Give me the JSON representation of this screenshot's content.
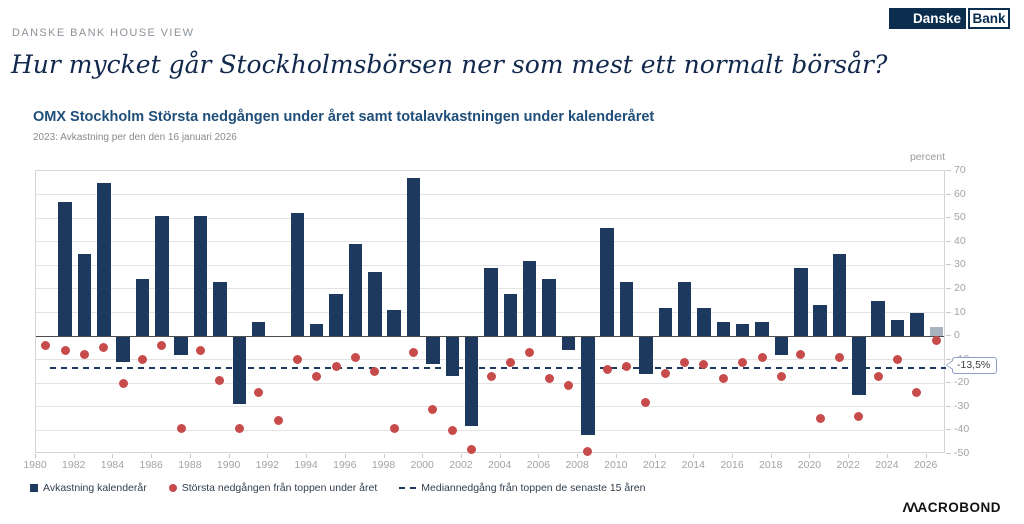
{
  "header": {
    "eyebrow": "DANSKE BANK HOUSE VIEW",
    "title": "Hur mycket går Stockholmsbörsen ner som mest ett normalt börsår?",
    "logo": {
      "part1": "Danske",
      "part2": "Bank"
    }
  },
  "chart": {
    "title": "OMX Stockholm Största nedgången under året samt totalavkastningen under kalenderåret",
    "subtitle": "2023: Avkastning per den den 16 januari 2026",
    "unit_label": "percent",
    "median_callout": "-13,5%"
  },
  "legend": {
    "items": [
      {
        "swatch": "bar-swatch",
        "label": "Avkastning kalenderår"
      },
      {
        "swatch": "dot-swatch",
        "label": "Största nedgången från toppen under året"
      },
      {
        "swatch": "dash-swatch",
        "label": "Mediannedgång från toppen de senaste 15 åren"
      }
    ]
  },
  "footer": {
    "brand": "MACROBOND",
    "brand_m": "ΛΛ",
    "brand_rest": "ACROBOND"
  },
  "colors": {
    "bar": "#1d3a5e",
    "bar_partial_year": "#a9b3c0",
    "dot": "#c84b4b",
    "median_line": "#1d3a5e",
    "accent_navy": "#0b2e4e",
    "title_blue": "#1f4e79"
  },
  "chart_data": {
    "type": "bar",
    "title": "OMX Stockholm Största nedgången under året samt totalavkastningen under kalenderåret",
    "subtitle": "2023: Avkastning per den den 16 januari 2026",
    "ylabel": "percent",
    "ylim": [
      -50,
      70
    ],
    "ytick_step": 10,
    "grid": true,
    "legend_position": "bottom",
    "median_drawdown_last15y": -13.5,
    "partial_year": 2026,
    "xtick_labels": [
      1980,
      1982,
      1984,
      1986,
      1988,
      1990,
      1992,
      1994,
      1996,
      1998,
      2000,
      2002,
      2004,
      2006,
      2008,
      2010,
      2012,
      2014,
      2016,
      2018,
      2020,
      2022,
      2024,
      2026
    ],
    "series": [
      {
        "name": "Avkastning kalenderår",
        "type": "bar"
      },
      {
        "name": "Största nedgången från toppen under året",
        "type": "scatter"
      },
      {
        "name": "Mediannedgång från toppen de senaste 15 åren",
        "type": "line",
        "value": -13.5
      }
    ],
    "years": [
      {
        "year": 1980,
        "return": 0,
        "drawdown": -4
      },
      {
        "year": 1981,
        "return": 57,
        "drawdown": -6
      },
      {
        "year": 1982,
        "return": 35,
        "drawdown": -8
      },
      {
        "year": 1983,
        "return": 65,
        "drawdown": -5
      },
      {
        "year": 1984,
        "return": -11,
        "drawdown": -20
      },
      {
        "year": 1985,
        "return": 24,
        "drawdown": -10
      },
      {
        "year": 1986,
        "return": 51,
        "drawdown": -4
      },
      {
        "year": 1987,
        "return": -8,
        "drawdown": -39
      },
      {
        "year": 1988,
        "return": 51,
        "drawdown": -6
      },
      {
        "year": 1989,
        "return": 23,
        "drawdown": -19
      },
      {
        "year": 1990,
        "return": -29,
        "drawdown": -39
      },
      {
        "year": 1991,
        "return": 6,
        "drawdown": -24
      },
      {
        "year": 1992,
        "return": 0,
        "drawdown": -36
      },
      {
        "year": 1993,
        "return": 52,
        "drawdown": -10
      },
      {
        "year": 1994,
        "return": 5,
        "drawdown": -17
      },
      {
        "year": 1995,
        "return": 18,
        "drawdown": -13
      },
      {
        "year": 1996,
        "return": 39,
        "drawdown": -9
      },
      {
        "year": 1997,
        "return": 27,
        "drawdown": -15
      },
      {
        "year": 1998,
        "return": 11,
        "drawdown": -39
      },
      {
        "year": 1999,
        "return": 67,
        "drawdown": -7
      },
      {
        "year": 2000,
        "return": -12,
        "drawdown": -31
      },
      {
        "year": 2001,
        "return": -17,
        "drawdown": -40
      },
      {
        "year": 2002,
        "return": -38,
        "drawdown": -48
      },
      {
        "year": 2003,
        "return": 29,
        "drawdown": -17
      },
      {
        "year": 2004,
        "return": 18,
        "drawdown": -11
      },
      {
        "year": 2005,
        "return": 32,
        "drawdown": -7
      },
      {
        "year": 2006,
        "return": 24,
        "drawdown": -18
      },
      {
        "year": 2007,
        "return": -6,
        "drawdown": -21
      },
      {
        "year": 2008,
        "return": -42,
        "drawdown": -49
      },
      {
        "year": 2009,
        "return": 46,
        "drawdown": -14
      },
      {
        "year": 2010,
        "return": 23,
        "drawdown": -13
      },
      {
        "year": 2011,
        "return": -16,
        "drawdown": -28
      },
      {
        "year": 2012,
        "return": 12,
        "drawdown": -16
      },
      {
        "year": 2013,
        "return": 23,
        "drawdown": -11
      },
      {
        "year": 2014,
        "return": 12,
        "drawdown": -12
      },
      {
        "year": 2015,
        "return": 6,
        "drawdown": -18
      },
      {
        "year": 2016,
        "return": 5,
        "drawdown": -11
      },
      {
        "year": 2017,
        "return": 6,
        "drawdown": -9
      },
      {
        "year": 2018,
        "return": -8,
        "drawdown": -17
      },
      {
        "year": 2019,
        "return": 29,
        "drawdown": -8
      },
      {
        "year": 2020,
        "return": 13,
        "drawdown": -35
      },
      {
        "year": 2021,
        "return": 35,
        "drawdown": -9
      },
      {
        "year": 2022,
        "return": -25,
        "drawdown": -34
      },
      {
        "year": 2023,
        "return": 15,
        "drawdown": -17
      },
      {
        "year": 2024,
        "return": 7,
        "drawdown": -10
      },
      {
        "year": 2025,
        "return": 10,
        "drawdown": -24
      },
      {
        "year": 2026,
        "return": 4,
        "drawdown": -2
      }
    ]
  }
}
